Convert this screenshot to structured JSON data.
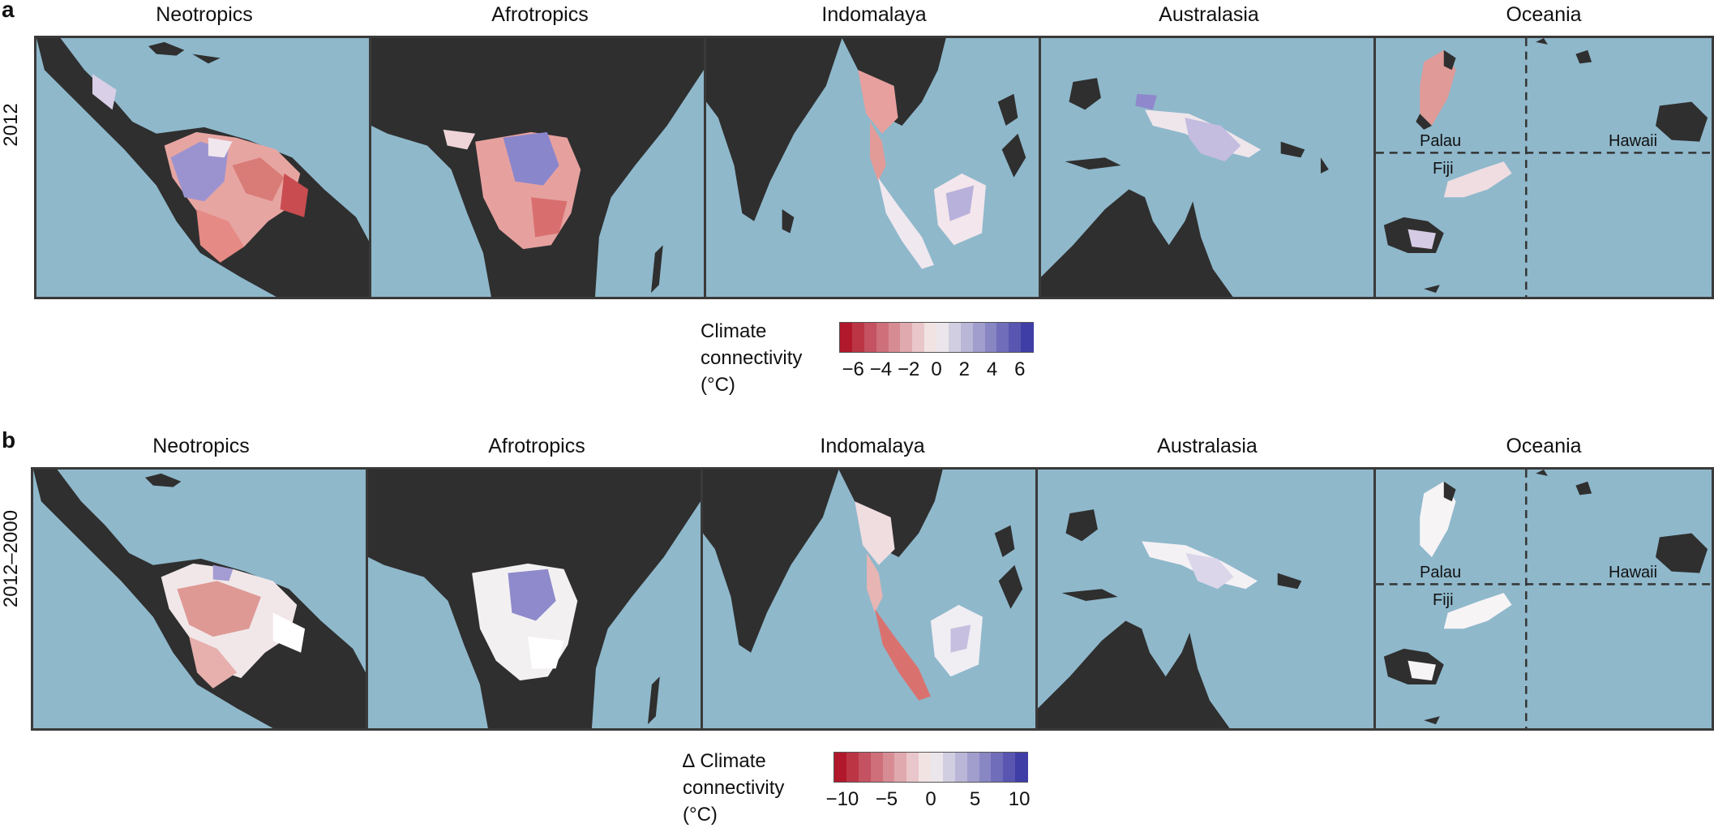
{
  "panels": [
    {
      "letter": "a",
      "row_label": "2012",
      "regions": [
        "Neotropics",
        "Afrotropics",
        "Indomalaya",
        "Australasia",
        "Oceania"
      ],
      "colorbar": {
        "title_lines": [
          "Climate",
          "connectivity",
          "(°C)"
        ],
        "ticks": [
          "−6",
          "−4",
          "−2",
          "0",
          "2",
          "4",
          "6"
        ],
        "range": [
          -7,
          7
        ]
      }
    },
    {
      "letter": "b",
      "row_label": "2012–2000",
      "regions": [
        "Neotropics",
        "Afrotropics",
        "Indomalaya",
        "Australasia",
        "Oceania"
      ],
      "colorbar": {
        "title_lines": [
          "∆ Climate",
          "connectivity",
          "(°C)"
        ],
        "ticks": [
          "−10",
          "−5",
          "0",
          "5",
          "10"
        ],
        "range": [
          -11,
          11
        ]
      }
    }
  ],
  "oceania_labels": [
    "Palau",
    "Hawaii",
    "Fiji"
  ],
  "colors": {
    "ocean": "#8fb8cb",
    "land": "#2f2f2f",
    "border": "#3a3a3a",
    "negative": "#b2182b",
    "neutral": "#f7f2f0",
    "positive": "#3f3ea6"
  }
}
